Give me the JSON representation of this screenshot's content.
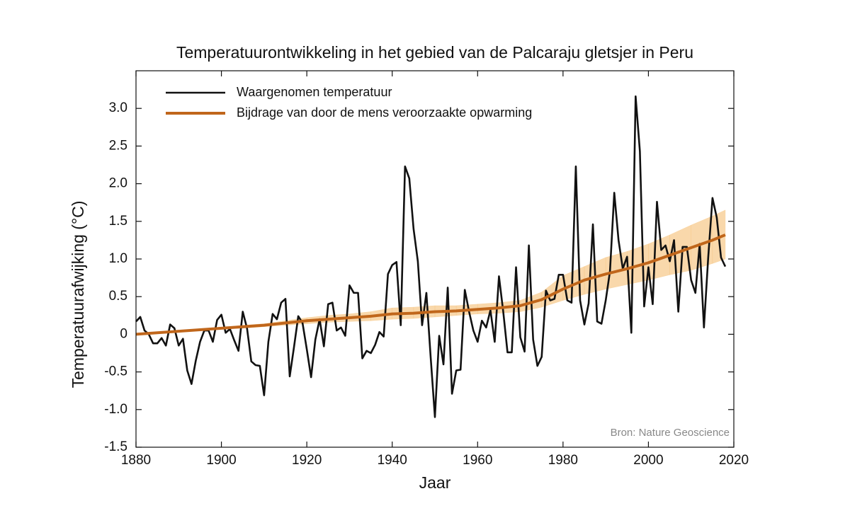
{
  "chart_data": {
    "type": "line",
    "title": "Temperatuurontwikkeling in het gebied van de Palcaraju gletsjer in Peru",
    "x_label": "Jaar",
    "y_label": "Temperatuurafwijking (°C)",
    "source": "Bron: Nature Geoscience",
    "xlim": [
      1880,
      2020
    ],
    "xticks": [
      1880,
      1900,
      1920,
      1940,
      1960,
      1980,
      2000,
      2020
    ],
    "ylim": [
      -1.5,
      3.5
    ],
    "yticks": [
      -1.5,
      {
        "value": -1,
        "label": "-1.0"
      },
      -0.5,
      0,
      0.5,
      {
        "value": 1,
        "label": "1.0"
      },
      1.5,
      {
        "value": 2,
        "label": "2.0"
      },
      2.5,
      {
        "value": 3,
        "label": "3.0"
      }
    ],
    "legend": "upper left",
    "series": [
      {
        "name": "Waargenomen temperatuur",
        "color": "#111111",
        "x": [
          1880,
          1881,
          1882,
          1883,
          1884,
          1885,
          1886,
          1887,
          1888,
          1889,
          1890,
          1891,
          1892,
          1893,
          1894,
          1895,
          1896,
          1897,
          1898,
          1899,
          1900,
          1901,
          1902,
          1903,
          1904,
          1905,
          1906,
          1907,
          1908,
          1909,
          1910,
          1911,
          1912,
          1913,
          1914,
          1915,
          1916,
          1917,
          1918,
          1919,
          1920,
          1921,
          1922,
          1923,
          1924,
          1925,
          1926,
          1927,
          1928,
          1929,
          1930,
          1931,
          1932,
          1933,
          1934,
          1935,
          1936,
          1937,
          1938,
          1939,
          1940,
          1941,
          1942,
          1943,
          1944,
          1945,
          1946,
          1947,
          1948,
          1949,
          1950,
          1951,
          1952,
          1953,
          1954,
          1955,
          1956,
          1957,
          1958,
          1959,
          1960,
          1961,
          1962,
          1963,
          1964,
          1965,
          1966,
          1967,
          1968,
          1969,
          1970,
          1971,
          1972,
          1973,
          1974,
          1975,
          1976,
          1977,
          1978,
          1979,
          1980,
          1981,
          1982,
          1983,
          1984,
          1985,
          1986,
          1987,
          1988,
          1989,
          1990,
          1991,
          1992,
          1993,
          1994,
          1995,
          1996,
          1997,
          1998,
          1999,
          2000,
          2001,
          2002,
          2003,
          2004,
          2005,
          2006,
          2007,
          2008,
          2009,
          2010,
          2011,
          2012,
          2013,
          2014,
          2015,
          2016,
          2017,
          2018
        ],
        "values": [
          0.17,
          0.23,
          0.05,
          0.0,
          -0.12,
          -0.12,
          -0.05,
          -0.15,
          0.13,
          0.08,
          -0.15,
          -0.06,
          -0.48,
          -0.66,
          -0.35,
          -0.1,
          0.05,
          0.05,
          -0.1,
          0.19,
          0.26,
          0.02,
          0.07,
          -0.08,
          -0.22,
          0.3,
          0.08,
          -0.36,
          -0.41,
          -0.42,
          -0.81,
          -0.1,
          0.27,
          0.2,
          0.42,
          0.47,
          -0.56,
          -0.17,
          0.24,
          0.15,
          -0.2,
          -0.57,
          -0.07,
          0.2,
          -0.16,
          0.4,
          0.42,
          0.05,
          0.09,
          -0.02,
          0.65,
          0.55,
          0.55,
          -0.32,
          -0.22,
          -0.25,
          -0.14,
          0.03,
          -0.03,
          0.8,
          0.92,
          0.96,
          0.12,
          2.23,
          2.07,
          1.4,
          0.97,
          0.12,
          0.55,
          -0.3,
          -1.1,
          -0.02,
          -0.4,
          0.62,
          -0.79,
          -0.48,
          -0.47,
          0.59,
          0.3,
          0.05,
          -0.1,
          0.18,
          0.09,
          0.32,
          -0.1,
          0.77,
          0.3,
          -0.24,
          -0.24,
          0.89,
          -0.04,
          -0.23,
          1.18,
          -0.07,
          -0.42,
          -0.3,
          0.58,
          0.45,
          0.47,
          0.79,
          0.79,
          0.45,
          0.42,
          2.23,
          0.45,
          0.13,
          0.41,
          1.46,
          0.17,
          0.14,
          0.45,
          0.84,
          1.88,
          1.25,
          0.87,
          1.03,
          0.02,
          3.16,
          2.43,
          0.37,
          0.89,
          0.4,
          1.76,
          1.12,
          1.18,
          0.97,
          1.25,
          0.3,
          1.16,
          1.16,
          0.72,
          0.55,
          1.2,
          0.09,
          1.02,
          1.81,
          1.55,
          1.02,
          0.9
        ]
      },
      {
        "name": "Bijdrage van door de mens veroorzaakte opwarming",
        "color": "#c0661b",
        "band_color": "#f6c887",
        "x": [
          1880,
          1885,
          1890,
          1895,
          1900,
          1905,
          1910,
          1915,
          1920,
          1925,
          1930,
          1935,
          1940,
          1945,
          1950,
          1955,
          1960,
          1965,
          1970,
          1975,
          1980,
          1985,
          1990,
          1995,
          2000,
          2005,
          2010,
          2015,
          2018
        ],
        "values": [
          0.0,
          0.02,
          0.04,
          0.06,
          0.08,
          0.1,
          0.12,
          0.15,
          0.18,
          0.2,
          0.22,
          0.24,
          0.27,
          0.28,
          0.3,
          0.31,
          0.33,
          0.35,
          0.38,
          0.46,
          0.6,
          0.72,
          0.8,
          0.87,
          0.95,
          1.05,
          1.15,
          1.25,
          1.32
        ],
        "lower": [
          0.0,
          0.02,
          0.04,
          0.05,
          0.07,
          0.08,
          0.1,
          0.12,
          0.14,
          0.16,
          0.17,
          0.18,
          0.2,
          0.21,
          0.23,
          0.25,
          0.27,
          0.28,
          0.3,
          0.36,
          0.45,
          0.53,
          0.6,
          0.66,
          0.72,
          0.79,
          0.85,
          0.94,
          1.0
        ],
        "upper": [
          0.0,
          0.02,
          0.04,
          0.07,
          0.09,
          0.12,
          0.14,
          0.18,
          0.22,
          0.25,
          0.27,
          0.3,
          0.35,
          0.36,
          0.38,
          0.38,
          0.4,
          0.42,
          0.45,
          0.56,
          0.78,
          0.9,
          1.02,
          1.1,
          1.2,
          1.32,
          1.45,
          1.57,
          1.65
        ]
      }
    ]
  }
}
